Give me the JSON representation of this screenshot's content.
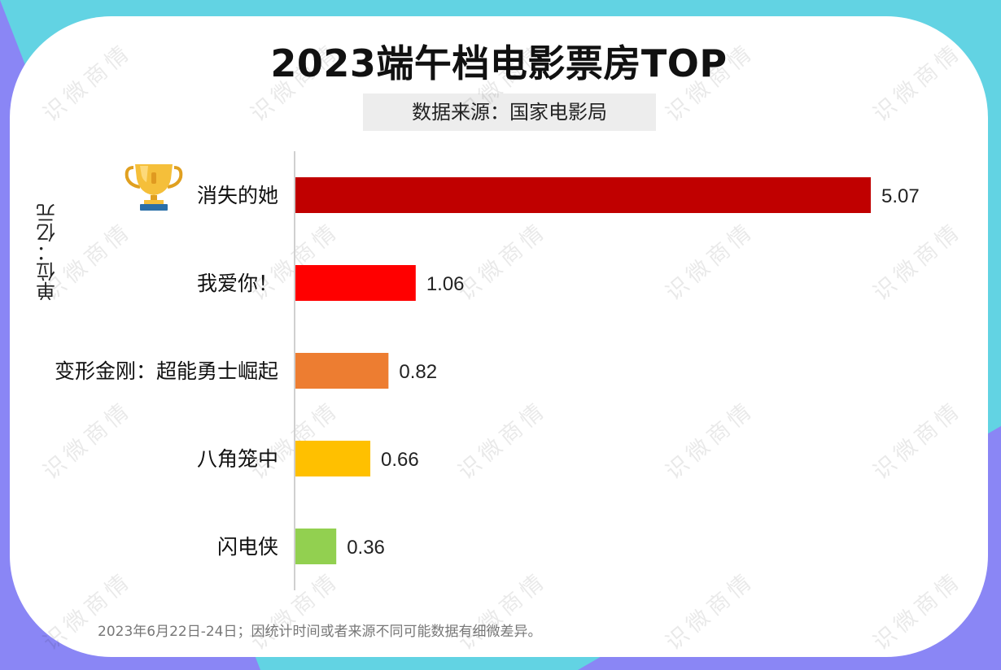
{
  "title": "2023端午档电影票房TOP",
  "source": "数据来源：国家电影局",
  "unit_label": "单位：亿元",
  "footnote": "2023年6月22日-24日；因统计时间或者来源不同可能数据有细微差异。",
  "watermark": "识微商情",
  "icons": {
    "top_rank": "trophy-icon"
  },
  "chart_data": {
    "type": "bar",
    "orientation": "horizontal",
    "categories": [
      "消失的她",
      "我爱你！",
      "变形金刚：超能勇士崛起",
      "八角笼中",
      "闪电侠"
    ],
    "values": [
      5.07,
      1.06,
      0.82,
      0.66,
      0.36
    ],
    "colors": [
      "#C00000",
      "#FF0000",
      "#ED7D31",
      "#FFC000",
      "#92D050"
    ],
    "value_labels": [
      "5.07",
      "1.06",
      "0.82",
      "0.66",
      "0.36"
    ],
    "xlim": [
      0,
      5.07
    ],
    "grid": false,
    "legend": "none"
  }
}
